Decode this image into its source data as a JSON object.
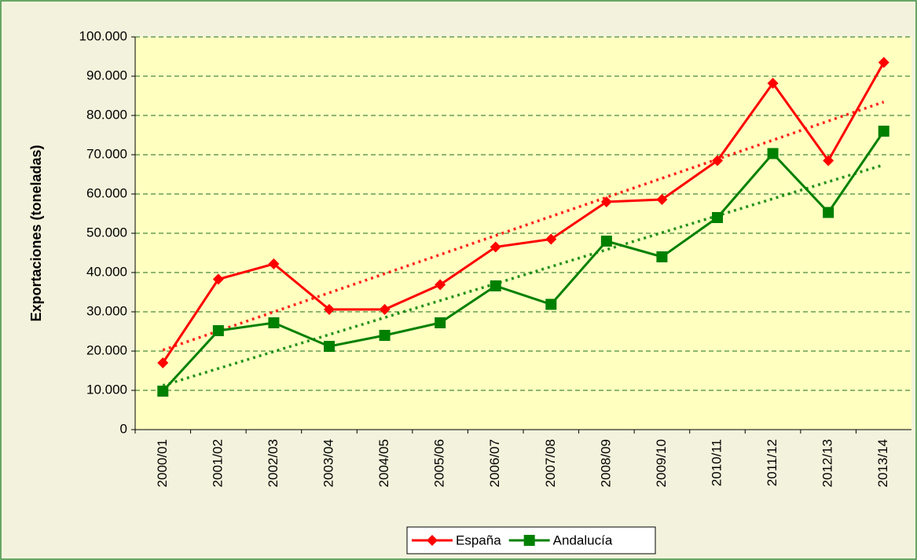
{
  "chart_data": {
    "type": "line",
    "y_label": "Exportaciones (toneladas)",
    "categories": [
      "2000/01",
      "2001/02",
      "2002/03",
      "2003/04",
      "2004/05",
      "2005/06",
      "2006/07",
      "2007/08",
      "2008/09",
      "2009/10",
      "2010/11",
      "2011/12",
      "2012/13",
      "2013/14"
    ],
    "series": [
      {
        "name": "España",
        "color": "#ff0000",
        "marker": "diamond",
        "values": [
          17000,
          38300,
          42200,
          30600,
          30600,
          36900,
          46500,
          48500,
          58000,
          58600,
          68500,
          88200,
          68500,
          93500
        ]
      },
      {
        "name": "Andalucía",
        "color": "#008000",
        "marker": "square",
        "values": [
          9800,
          25200,
          27200,
          21200,
          24000,
          27200,
          36600,
          31900,
          48000,
          44000,
          54000,
          70300,
          55300,
          76000
        ]
      }
    ],
    "ylim": [
      0,
      100000
    ],
    "yticks": [
      0,
      {
        "value": 10000,
        "label": "10.000"
      },
      {
        "value": 20000,
        "label": "20.000"
      },
      {
        "value": 30000,
        "label": "30.000"
      },
      {
        "value": 40000,
        "label": "40.000"
      },
      {
        "value": 50000,
        "label": "50.000"
      },
      {
        "value": 60000,
        "label": "60.000"
      },
      {
        "value": 70000,
        "label": "70.000"
      },
      {
        "value": 80000,
        "label": "80.000"
      },
      {
        "value": 90000,
        "label": "90.000"
      },
      {
        "value": 100000,
        "label": "100.000"
      }
    ],
    "grid": true,
    "trendline": true,
    "legend": "bottom"
  }
}
